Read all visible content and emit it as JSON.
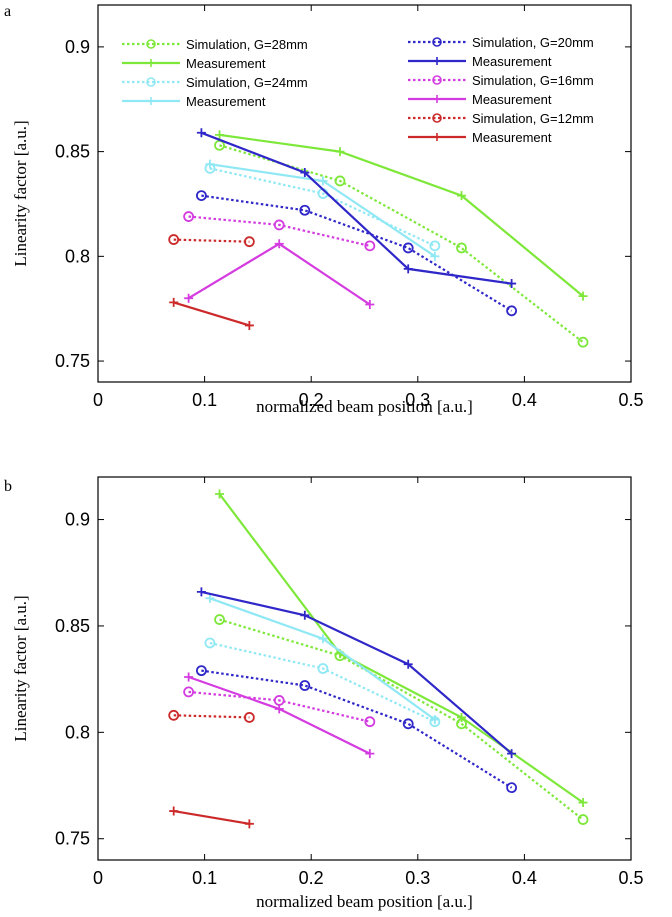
{
  "colors": {
    "g28": "#7ee83a",
    "g24": "#8fe8f4",
    "g20": "#2f27c8",
    "g16": "#d43be0",
    "g12": "#cc2a2a"
  },
  "chart_data": [
    {
      "type": "line",
      "panel_label": "a",
      "xlabel": "normalized beam position [a.u.]",
      "ylabel": "Linearity factor [a.u.]",
      "xlim": [
        0,
        0.5
      ],
      "ylim": [
        0.74,
        0.92
      ],
      "xticks": [
        0,
        0.1,
        0.2,
        0.3,
        0.4,
        0.5
      ],
      "xtick_labels": [
        "0",
        "0.1",
        "0.2",
        "0.3",
        "0.4",
        "0.5"
      ],
      "yticks": [
        0.75,
        0.8,
        0.85,
        0.9
      ],
      "ytick_labels": [
        "0.75",
        "0.8",
        "0.85",
        "0.9"
      ],
      "grid": false,
      "legend_position": "top",
      "series": [
        {
          "name": "Simulation, G=28mm",
          "color_key": "g28",
          "style": "dotted",
          "marker": "circle",
          "x": [
            0.114,
            0.227,
            0.341,
            0.455
          ],
          "y": [
            0.853,
            0.836,
            0.804,
            0.759
          ]
        },
        {
          "name": "Measurement",
          "color_key": "g28",
          "style": "solid",
          "marker": "plus",
          "x": [
            0.114,
            0.227,
            0.341,
            0.455
          ],
          "y": [
            0.858,
            0.85,
            0.829,
            0.781
          ]
        },
        {
          "name": "Simulation, G=24mm",
          "color_key": "g24",
          "style": "dotted",
          "marker": "circle",
          "x": [
            0.105,
            0.211,
            0.316
          ],
          "y": [
            0.842,
            0.83,
            0.805
          ]
        },
        {
          "name": "Measurement",
          "color_key": "g24",
          "style": "solid",
          "marker": "plus",
          "x": [
            0.105,
            0.211,
            0.316
          ],
          "y": [
            0.844,
            0.836,
            0.8
          ]
        },
        {
          "name": "Simulation, G=20mm",
          "color_key": "g20",
          "style": "dotted",
          "marker": "circle",
          "x": [
            0.097,
            0.194,
            0.291,
            0.388
          ],
          "y": [
            0.829,
            0.822,
            0.804,
            0.774
          ]
        },
        {
          "name": "Measurement",
          "color_key": "g20",
          "style": "solid",
          "marker": "plus",
          "x": [
            0.097,
            0.194,
            0.291,
            0.388
          ],
          "y": [
            0.859,
            0.84,
            0.794,
            0.787
          ]
        },
        {
          "name": "Simulation, G=16mm",
          "color_key": "g16",
          "style": "dotted",
          "marker": "circle",
          "x": [
            0.085,
            0.17,
            0.255
          ],
          "y": [
            0.819,
            0.815,
            0.805
          ]
        },
        {
          "name": "Measurement",
          "color_key": "g16",
          "style": "solid",
          "marker": "plus",
          "x": [
            0.085,
            0.17,
            0.255
          ],
          "y": [
            0.78,
            0.806,
            0.777
          ]
        },
        {
          "name": "Simulation, G=12mm",
          "color_key": "g12",
          "style": "dotted",
          "marker": "circle",
          "x": [
            0.071,
            0.142
          ],
          "y": [
            0.808,
            0.807
          ]
        },
        {
          "name": "Measurement",
          "color_key": "g12",
          "style": "solid",
          "marker": "plus",
          "x": [
            0.071,
            0.142
          ],
          "y": [
            0.778,
            0.767
          ]
        }
      ]
    },
    {
      "type": "line",
      "panel_label": "b",
      "xlabel": "normalized beam position [a.u.]",
      "ylabel": "Linearity factor [a.u.]",
      "xlim": [
        0,
        0.5
      ],
      "ylim": [
        0.74,
        0.92
      ],
      "xticks": [
        0,
        0.1,
        0.2,
        0.3,
        0.4,
        0.5
      ],
      "xtick_labels": [
        "0",
        "0.1",
        "0.2",
        "0.3",
        "0.4",
        "0.5"
      ],
      "yticks": [
        0.75,
        0.8,
        0.85,
        0.9
      ],
      "ytick_labels": [
        "0.75",
        "0.8",
        "0.85",
        "0.9"
      ],
      "grid": false,
      "series": [
        {
          "color_key": "g28",
          "style": "dotted",
          "marker": "circle",
          "x": [
            0.114,
            0.227,
            0.341,
            0.455
          ],
          "y": [
            0.853,
            0.836,
            0.804,
            0.759
          ]
        },
        {
          "color_key": "g28",
          "style": "solid",
          "marker": "plus",
          "x": [
            0.114,
            0.227,
            0.341,
            0.455
          ],
          "y": [
            0.912,
            0.837,
            0.807,
            0.767
          ]
        },
        {
          "color_key": "g24",
          "style": "dotted",
          "marker": "circle",
          "x": [
            0.105,
            0.211,
            0.316
          ],
          "y": [
            0.842,
            0.83,
            0.805
          ]
        },
        {
          "color_key": "g24",
          "style": "solid",
          "marker": "plus",
          "x": [
            0.105,
            0.211,
            0.316
          ],
          "y": [
            0.863,
            0.844,
            0.806
          ]
        },
        {
          "color_key": "g20",
          "style": "dotted",
          "marker": "circle",
          "x": [
            0.097,
            0.194,
            0.291,
            0.388
          ],
          "y": [
            0.829,
            0.822,
            0.804,
            0.774
          ]
        },
        {
          "color_key": "g20",
          "style": "solid",
          "marker": "plus",
          "x": [
            0.097,
            0.194,
            0.291,
            0.388
          ],
          "y": [
            0.866,
            0.855,
            0.832,
            0.79
          ]
        },
        {
          "color_key": "g16",
          "style": "dotted",
          "marker": "circle",
          "x": [
            0.085,
            0.17,
            0.255
          ],
          "y": [
            0.819,
            0.815,
            0.805
          ]
        },
        {
          "color_key": "g16",
          "style": "solid",
          "marker": "plus",
          "x": [
            0.085,
            0.17,
            0.255
          ],
          "y": [
            0.826,
            0.811,
            0.79
          ]
        },
        {
          "color_key": "g12",
          "style": "dotted",
          "marker": "circle",
          "x": [
            0.071,
            0.142
          ],
          "y": [
            0.808,
            0.807
          ]
        },
        {
          "color_key": "g12",
          "style": "solid",
          "marker": "plus",
          "x": [
            0.071,
            0.142
          ],
          "y": [
            0.763,
            0.757
          ]
        }
      ]
    }
  ]
}
